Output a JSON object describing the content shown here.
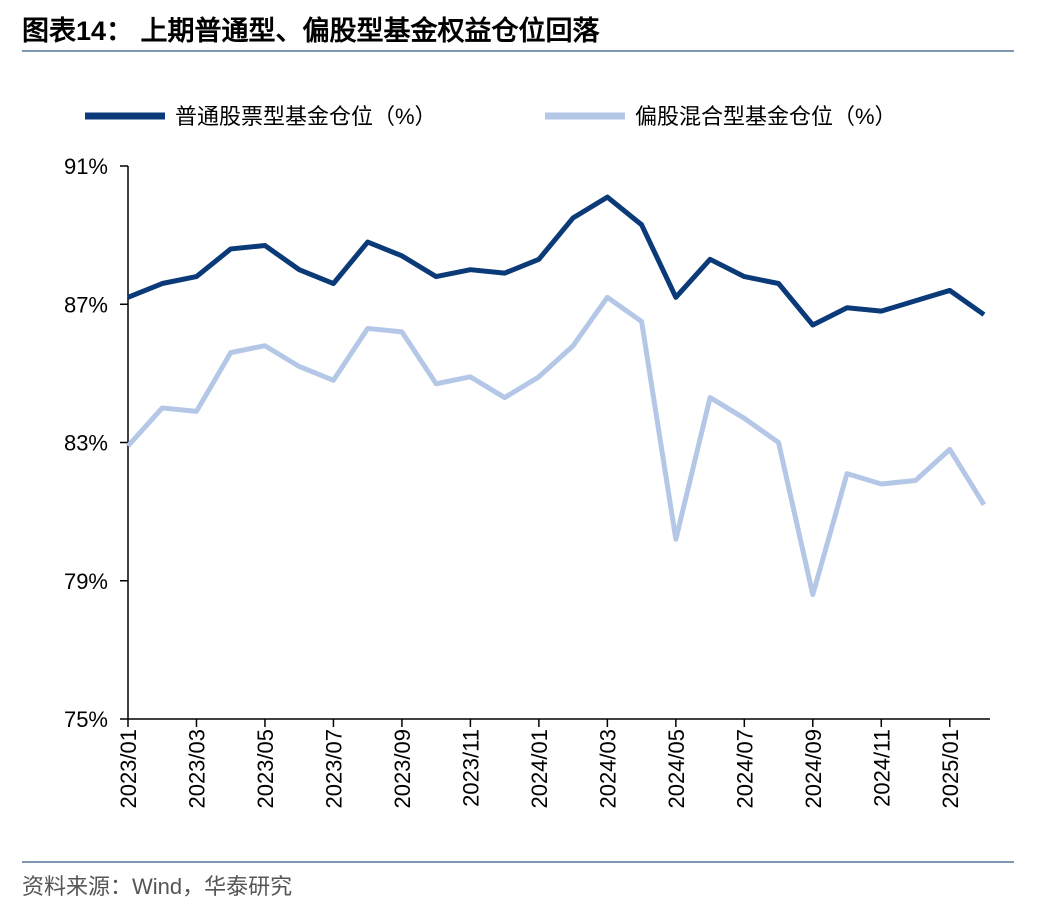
{
  "chart_data": {
    "type": "line",
    "title": "图表14：  上期普通型、偏股型基金权益仓位回落",
    "source": "资料来源：Wind，华泰研究",
    "x": [
      "2023/01",
      "2023/02",
      "2023/03",
      "2023/04",
      "2023/05",
      "2023/06",
      "2023/07",
      "2023/08",
      "2023/09",
      "2023/10",
      "2023/11",
      "2023/12",
      "2024/01",
      "2024/02",
      "2024/03",
      "2024/04",
      "2024/05",
      "2024/06",
      "2024/07",
      "2024/08",
      "2024/09",
      "2024/10",
      "2024/11",
      "2024/12",
      "2025/01",
      "2025/02"
    ],
    "series": [
      {
        "name": "普通股票型基金仓位（%）",
        "color": "#0b3a78",
        "values": [
          87.2,
          87.6,
          87.8,
          88.6,
          88.7,
          88.0,
          87.6,
          88.8,
          88.4,
          87.8,
          88.0,
          87.9,
          88.3,
          89.5,
          90.1,
          89.3,
          87.2,
          88.3,
          87.8,
          87.6,
          86.4,
          86.9,
          86.8,
          87.1,
          87.4,
          86.7
        ]
      },
      {
        "name": "偏股混合型基金仓位（%）",
        "color": "#b4c7e7",
        "values": [
          82.9,
          84.0,
          83.9,
          85.6,
          85.8,
          85.2,
          84.8,
          86.3,
          86.2,
          84.7,
          84.9,
          84.3,
          84.9,
          85.8,
          87.2,
          86.5,
          80.2,
          84.3,
          83.7,
          83.0,
          78.6,
          82.1,
          81.8,
          81.9,
          82.8,
          81.2
        ]
      }
    ],
    "xlim": [
      "2023/01",
      "2025/02"
    ],
    "xticks": [
      "2023/01",
      "2023/03",
      "2023/05",
      "2023/07",
      "2023/09",
      "2023/11",
      "2024/01",
      "2024/03",
      "2024/05",
      "2024/07",
      "2024/09",
      "2024/11",
      "2025/01"
    ],
    "ylim": [
      75,
      91
    ],
    "yticks": [
      {
        "value": 75,
        "label": "75%"
      },
      {
        "value": 79,
        "label": "79%"
      },
      {
        "value": 83,
        "label": "83%"
      },
      {
        "value": 87,
        "label": "87%"
      },
      {
        "value": 91,
        "label": "91%"
      }
    ],
    "legend": "top"
  }
}
